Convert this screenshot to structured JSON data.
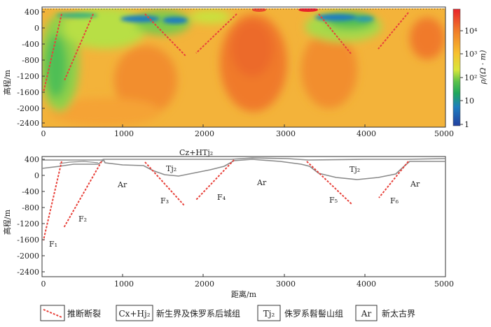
{
  "top_panel": {
    "y_label": "高程/m",
    "y_ticks": [
      "400",
      "0",
      "-400",
      "-800",
      "-1200",
      "-1600",
      "-2000",
      "-2400"
    ],
    "x_ticks": [
      "0",
      "1000",
      "2000",
      "3000",
      "4000",
      "5000"
    ],
    "colorbar": {
      "unit_label": "ρ/(Ω · m)",
      "ticks": [
        "10⁴",
        "10³",
        "10²",
        "10",
        "1"
      ],
      "colors": [
        "#e8232a",
        "#f07a2a",
        "#f7c12e",
        "#d9e63a",
        "#5cc24a",
        "#1fa75c",
        "#1e7dbf",
        "#2340a0"
      ]
    }
  },
  "bottom_panel": {
    "y_label": "高程/m",
    "x_label": "距离/m",
    "y_ticks": [
      "400",
      "0",
      "-400",
      "-800",
      "-1200",
      "-1600",
      "-2000",
      "-2400"
    ],
    "x_ticks": [
      "0",
      "1000",
      "2000",
      "3000",
      "4000",
      "5000"
    ],
    "unit_labels": {
      "cz_htj2": "Cz+HTj₂",
      "tj2_left": "Tj₂",
      "tj2_right": "Tj₂",
      "ar_left": "Ar",
      "ar_center": "Ar",
      "ar_right": "Ar"
    },
    "faults": [
      "F₁",
      "F₂",
      "F₃",
      "F₄",
      "F₅",
      "F₆"
    ]
  },
  "legend": {
    "fault_label": "推断断裂",
    "box1": "Cx+Hj₂",
    "box1_label": "新生界及侏罗系后城组",
    "box2": "Tj₂",
    "box2_label": "侏罗系髫髻山组",
    "box3": "Ar",
    "box3_label": "新太古界"
  },
  "colors": {
    "fault_line": "#e8413a",
    "boundary": "#8a8a8a",
    "frame": "#333333"
  }
}
